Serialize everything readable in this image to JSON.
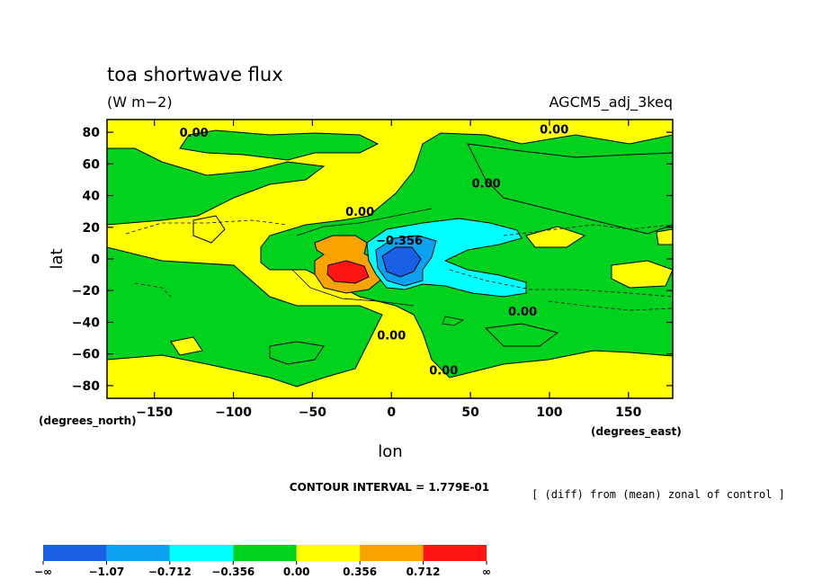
{
  "chart_data": {
    "type": "heatmap",
    "title": "toa shortwave flux",
    "units": "(W m−2)",
    "experiment": "AGCM5_adj_3keq",
    "xlabel": "lon",
    "ylabel": "lat",
    "x_units_label": "(degrees_east)",
    "y_units_label": "(degrees_north)",
    "xlim": [
      -180,
      178
    ],
    "ylim": [
      -88,
      88
    ],
    "x_ticks": [
      -150,
      -100,
      -50,
      0,
      50,
      100,
      150
    ],
    "y_ticks": [
      80,
      60,
      40,
      20,
      0,
      -20,
      -40,
      -60,
      -80
    ],
    "x_tick_labels": [
      "−150",
      "−100",
      "−50",
      "0",
      "50",
      "100",
      "150"
    ],
    "y_tick_labels": [
      "80",
      "60",
      "40",
      "20",
      "0",
      "−20",
      "−40",
      "−60",
      "−80"
    ],
    "contour_interval_text": "CONTOUR INTERVAL = 1.779E-01",
    "comparison_note": "[ (diff) from (mean) zonal of control ]",
    "contour_labels": [
      {
        "text": "0.00",
        "lon": -125,
        "lat": 80
      },
      {
        "text": "0.00",
        "lon": 103,
        "lat": 82
      },
      {
        "text": "0.00",
        "lon": 60,
        "lat": 48
      },
      {
        "text": "0.00",
        "lon": -20,
        "lat": 30
      },
      {
        "text": "−0.356",
        "lon": 5,
        "lat": 12
      },
      {
        "text": "0.00",
        "lon": 83,
        "lat": -33
      },
      {
        "text": "0.00",
        "lon": 0,
        "lat": -48
      },
      {
        "text": "0.00",
        "lon": 33,
        "lat": -70
      }
    ],
    "colorbar": {
      "boundaries": [
        "−∞",
        "−1.07",
        "−0.712",
        "−0.356",
        "0.00",
        "0.356",
        "0.712",
        "∞"
      ],
      "bins": [
        {
          "range": "< -1.07",
          "color": "#1a5fe6"
        },
        {
          "range": "-1.07 to -0.712",
          "color": "#0ca0f0"
        },
        {
          "range": "-0.712 to -0.356",
          "color": "#00ffff"
        },
        {
          "range": "-0.356 to 0.00",
          "color": "#00d21e"
        },
        {
          "range": "0.00 to 0.356",
          "color": "#ffff00"
        },
        {
          "range": "0.356 to 0.712",
          "color": "#f8a300"
        },
        {
          "range": "> 0.712",
          "color": "#ff1414"
        }
      ]
    },
    "regions": [
      {
        "level": "positive_mid",
        "lon": [
          -50,
          -20
        ],
        "lat": [
          -22,
          16
        ]
      },
      {
        "level": "positive_high",
        "lon": [
          -38,
          -18
        ],
        "lat": [
          -16,
          -4
        ]
      },
      {
        "level": "negative_mid",
        "lon": [
          -15,
          85
        ],
        "lat": [
          -25,
          28
        ]
      },
      {
        "level": "negative_low",
        "lon": [
          -10,
          25
        ],
        "lat": [
          -15,
          12
        ]
      },
      {
        "level": "negative_lowest",
        "lon": [
          -5,
          5
        ],
        "lat": [
          -12,
          -6
        ]
      }
    ]
  }
}
